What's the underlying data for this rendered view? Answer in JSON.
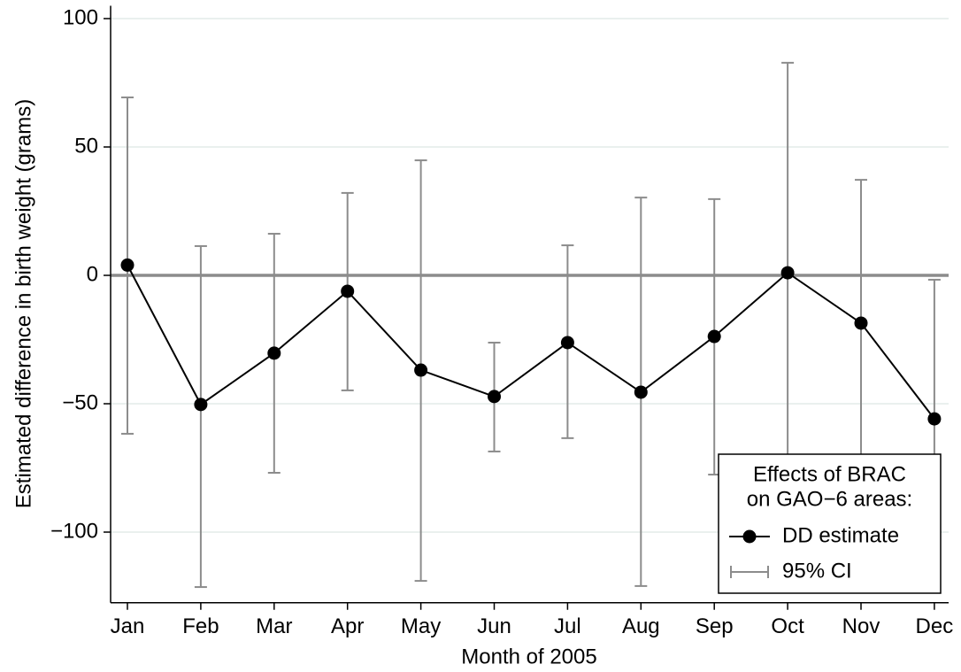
{
  "chart_data": {
    "type": "line",
    "x_label": "Month of 2005",
    "y_label": "Estimated difference in birth weight (grams)",
    "categories": [
      "Jan",
      "Feb",
      "Mar",
      "Apr",
      "May",
      "Jun",
      "Jul",
      "Aug",
      "Sep",
      "Oct",
      "Nov",
      "Dec"
    ],
    "series": [
      {
        "name": "DD estimate",
        "color": "#000000",
        "values": [
          4,
          -50.3,
          -30.3,
          -6.2,
          -36.9,
          -47.2,
          -26.2,
          -45.5,
          -23.8,
          1,
          -18.6,
          -55.9
        ]
      },
      {
        "name": "95% CI",
        "color": "#8c8c8c",
        "lower": [
          -61.7,
          -121.4,
          -76.9,
          -44.8,
          -119,
          -68.6,
          -63.4,
          -121,
          -77.6,
          -80,
          -74,
          -110
        ],
        "upper": [
          69.3,
          11.4,
          16.2,
          32.1,
          44.8,
          -26.2,
          11.7,
          30.3,
          29.7,
          82.8,
          37.2,
          -1.7
        ]
      }
    ],
    "ylim": [
      -127.5,
      105
    ],
    "yticks": [
      {
        "value": -100,
        "label": "−100"
      },
      {
        "value": -50,
        "label": "−50"
      },
      0,
      50,
      100
    ],
    "reference_line": 0,
    "grid": true,
    "legend": {
      "title": [
        "Effects of BRAC",
        "on GAO−6 areas:"
      ],
      "position": "lower right"
    }
  }
}
